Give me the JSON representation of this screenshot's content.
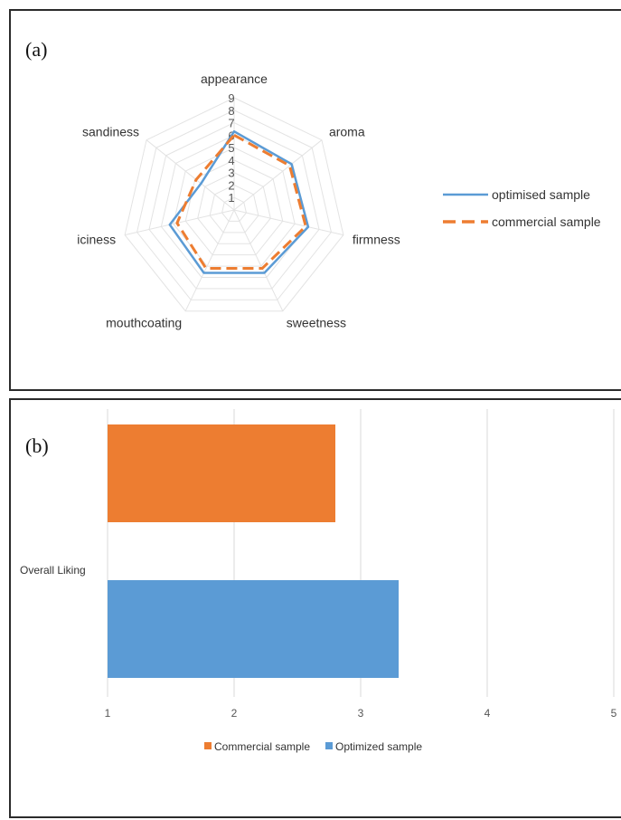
{
  "chart_data": [
    {
      "panel_label": "(a)",
      "type": "radar",
      "axes": [
        "appearance",
        "aroma",
        "firmness",
        "sweetness",
        "mouthcoating",
        "iciness",
        "sandiness"
      ],
      "radial_ticks": [
        1,
        2,
        3,
        4,
        5,
        6,
        7,
        8,
        9
      ],
      "rmax": 9,
      "series": [
        {
          "name": "optimised sample",
          "values": [
            6.3,
            5.9,
            6.1,
            5.6,
            5.6,
            5.3,
            3.4
          ],
          "color": "#5b9bd5",
          "dash": "solid"
        },
        {
          "name": "commercial sample",
          "values": [
            6.0,
            5.7,
            5.9,
            5.2,
            5.2,
            4.7,
            3.9
          ],
          "color": "#ed7d31",
          "dash": "dashed"
        }
      ],
      "legend_position": "right",
      "grid": true
    },
    {
      "panel_label": "(b)",
      "type": "bar",
      "orientation": "horizontal",
      "categories": [
        "Overall Liking"
      ],
      "series": [
        {
          "name": "Commercial sample",
          "values": [
            2.8
          ],
          "color": "#ed7d31"
        },
        {
          "name": "Optimized sample",
          "values": [
            3.3
          ],
          "color": "#5b9bd5"
        }
      ],
      "xlim": [
        1,
        5
      ],
      "xticks": [
        1,
        2,
        3,
        4,
        5
      ],
      "legend_position": "bottom",
      "grid": true
    }
  ]
}
